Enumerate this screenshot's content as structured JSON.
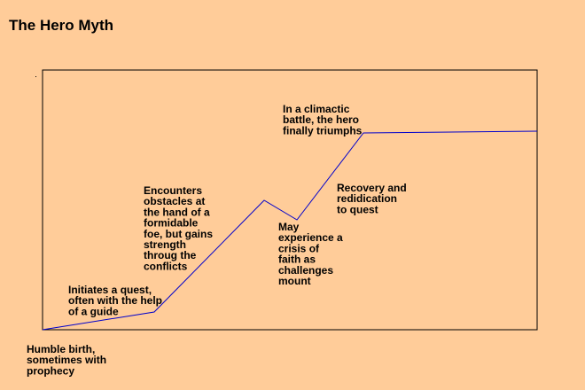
{
  "title": "The Hero Myth",
  "annotations": [
    {
      "lines": [
        "Humble birth,",
        "sometimes with",
        "prophecy"
      ]
    },
    {
      "lines": [
        "Initiates a quest,",
        "often with the help",
        "of a guide"
      ]
    },
    {
      "lines": [
        "Encounters",
        "obstacles at",
        "the hand of a",
        "formidable",
        "foe, but gains",
        "strength",
        "throug the",
        "conflicts"
      ]
    },
    {
      "lines": [
        "May",
        "experience a",
        "crisis of",
        "faith as",
        "challenges",
        "mount"
      ]
    },
    {
      "lines": [
        "Recovery and",
        "redidication",
        "to quest"
      ]
    },
    {
      "lines": [
        "In a climactic",
        "battle, the hero",
        "finally triumphs"
      ]
    }
  ]
}
